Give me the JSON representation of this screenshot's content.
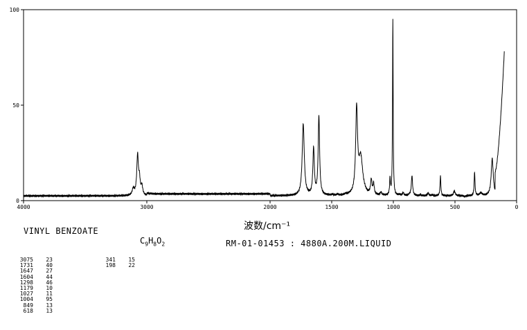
{
  "compound": {
    "name": "VINYL BENZOATE",
    "formula": [
      {
        "t": "C",
        "sub": false
      },
      {
        "t": "9",
        "sub": true
      },
      {
        "t": "H",
        "sub": false
      },
      {
        "t": "8",
        "sub": true
      },
      {
        "t": "O",
        "sub": false
      },
      {
        "t": "2",
        "sub": true
      }
    ],
    "source_info": "RM-01-01453 : 4880A.200M.LIQUID"
  },
  "peak_table": {
    "left": [
      {
        "wavenumber": "3075",
        "intensity": "23"
      },
      {
        "wavenumber": "1731",
        "intensity": "40"
      },
      {
        "wavenumber": "1647",
        "intensity": "27"
      },
      {
        "wavenumber": "1604",
        "intensity": "44"
      },
      {
        "wavenumber": "1298",
        "intensity": "46"
      },
      {
        "wavenumber": "1179",
        "intensity": "10"
      },
      {
        "wavenumber": "1027",
        "intensity": "11"
      },
      {
        "wavenumber": "1004",
        "intensity": "95"
      },
      {
        "wavenumber": "849",
        "intensity": "13"
      },
      {
        "wavenumber": "618",
        "intensity": "13"
      }
    ],
    "right": [
      {
        "wavenumber": "341",
        "intensity": "15"
      },
      {
        "wavenumber": "198",
        "intensity": "22"
      }
    ]
  },
  "chart_data": {
    "type": "line",
    "xlabel": "波数/cm⁻¹",
    "ylabel": "",
    "xlim": [
      4000,
      0
    ],
    "ylim": [
      0,
      100
    ],
    "x_ticks": [
      {
        "value": 4000,
        "label": "4000"
      },
      {
        "value": 3000,
        "label": "3000"
      },
      {
        "value": 2000,
        "label": "2000"
      },
      {
        "value": 1500,
        "label": "1500"
      },
      {
        "value": 1000,
        "label": "1000"
      },
      {
        "value": 500,
        "label": "500"
      },
      {
        "value": 0,
        "label": "0"
      }
    ],
    "y_ticks": [
      {
        "value": 0,
        "label": "0"
      },
      {
        "value": 50,
        "label": "50"
      },
      {
        "value": 100,
        "label": "100"
      }
    ],
    "baseline": 2.5,
    "baseline_segments": [
      {
        "x": [
          4000,
          3150
        ],
        "y": 2.5
      },
      {
        "x": [
          3000,
          2000
        ],
        "y": 3.5
      }
    ],
    "peaks": [
      {
        "x": 3110,
        "y": 6,
        "width": 10
      },
      {
        "x": 3075,
        "y": 23,
        "width": 8
      },
      {
        "x": 3060,
        "y": 10,
        "width": 8
      },
      {
        "x": 3040,
        "y": 7,
        "width": 8
      },
      {
        "x": 1731,
        "y": 40,
        "width": 10
      },
      {
        "x": 1647,
        "y": 27,
        "width": 7
      },
      {
        "x": 1604,
        "y": 44,
        "width": 7
      },
      {
        "x": 1495,
        "y": 3,
        "width": 6
      },
      {
        "x": 1452,
        "y": 3,
        "width": 7
      },
      {
        "x": 1385,
        "y": 3,
        "width": 8
      },
      {
        "x": 1298,
        "y": 46,
        "width": 9
      },
      {
        "x": 1265,
        "y": 22,
        "width": 20
      },
      {
        "x": 1179,
        "y": 10,
        "width": 7
      },
      {
        "x": 1160,
        "y": 8,
        "width": 6
      },
      {
        "x": 1100,
        "y": 4,
        "width": 7
      },
      {
        "x": 1027,
        "y": 11,
        "width": 4
      },
      {
        "x": 1004,
        "y": 95,
        "width": 3
      },
      {
        "x": 950,
        "y": 3,
        "width": 6
      },
      {
        "x": 920,
        "y": 4,
        "width": 6
      },
      {
        "x": 870,
        "y": 3,
        "width": 6
      },
      {
        "x": 849,
        "y": 13,
        "width": 6
      },
      {
        "x": 780,
        "y": 3,
        "width": 6
      },
      {
        "x": 718,
        "y": 4,
        "width": 6
      },
      {
        "x": 685,
        "y": 3,
        "width": 6
      },
      {
        "x": 618,
        "y": 13,
        "width": 4
      },
      {
        "x": 505,
        "y": 5,
        "width": 8
      },
      {
        "x": 420,
        "y": 2,
        "width": 8
      },
      {
        "x": 341,
        "y": 15,
        "width": 4
      },
      {
        "x": 290,
        "y": 4,
        "width": 12
      },
      {
        "x": 198,
        "y": 22,
        "width": 10
      }
    ],
    "tail_rise": {
      "x": [
        175,
        100
      ],
      "y": [
        15,
        78
      ]
    }
  }
}
